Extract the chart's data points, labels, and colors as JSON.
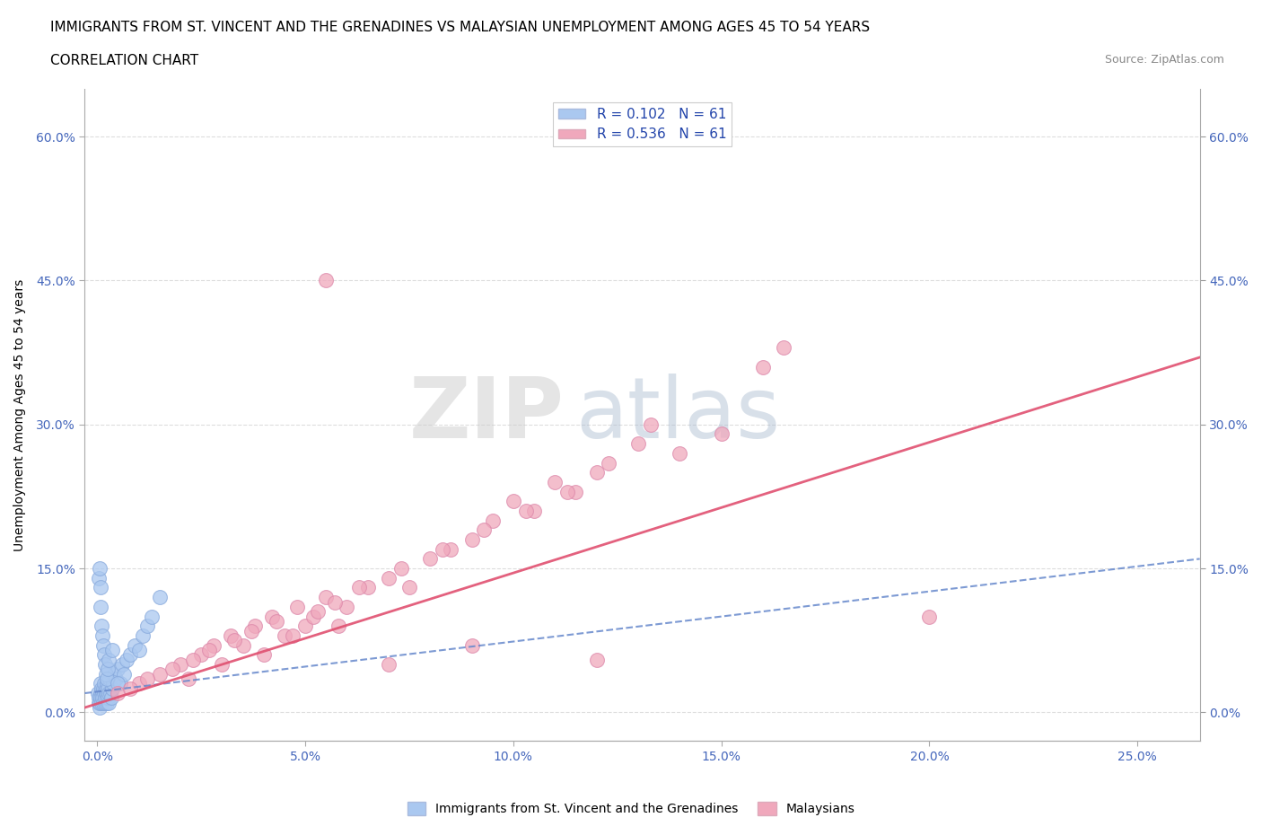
{
  "title_line1": "IMMIGRANTS FROM ST. VINCENT AND THE GRENADINES VS MALAYSIAN UNEMPLOYMENT AMONG AGES 45 TO 54 YEARS",
  "title_line2": "CORRELATION CHART",
  "source_text": "Source: ZipAtlas.com",
  "ylabel": "Unemployment Among Ages 45 to 54 years",
  "x_tick_labels": [
    "0.0%",
    "5.0%",
    "10.0%",
    "15.0%",
    "20.0%",
    "25.0%"
  ],
  "x_tick_values": [
    0.0,
    5.0,
    10.0,
    15.0,
    20.0,
    25.0
  ],
  "y_tick_labels": [
    "0.0%",
    "15.0%",
    "30.0%",
    "45.0%",
    "60.0%"
  ],
  "y_tick_values": [
    0.0,
    15.0,
    30.0,
    45.0,
    60.0
  ],
  "xlim": [
    -0.3,
    26.5
  ],
  "ylim": [
    -3.0,
    65.0
  ],
  "R_blue": 0.102,
  "R_pink": 0.536,
  "N_blue": 61,
  "N_pink": 61,
  "blue_color": "#aac8f0",
  "pink_color": "#f0a8bc",
  "blue_line_color": "#6688cc",
  "pink_line_color": "#e05070",
  "legend_label_blue": "Immigrants from St. Vincent and the Grenadines",
  "legend_label_pink": "Malaysians",
  "watermark_zip": "ZIP",
  "watermark_atlas": "atlas",
  "grid_color": "#dddddd",
  "title_fontsize": 11,
  "axis_label_fontsize": 10,
  "tick_fontsize": 10,
  "blue_scatter_x": [
    0.02,
    0.03,
    0.04,
    0.05,
    0.06,
    0.07,
    0.08,
    0.09,
    0.1,
    0.11,
    0.12,
    0.13,
    0.14,
    0.15,
    0.16,
    0.17,
    0.18,
    0.19,
    0.2,
    0.21,
    0.22,
    0.23,
    0.24,
    0.25,
    0.26,
    0.27,
    0.28,
    0.3,
    0.32,
    0.34,
    0.36,
    0.38,
    0.4,
    0.45,
    0.5,
    0.55,
    0.6,
    0.65,
    0.7,
    0.8,
    0.9,
    1.0,
    1.1,
    1.2,
    1.3,
    1.5,
    0.03,
    0.05,
    0.07,
    0.09,
    0.11,
    0.13,
    0.15,
    0.17,
    0.19,
    0.21,
    0.23,
    0.25,
    0.28,
    0.35,
    0.5
  ],
  "blue_scatter_y": [
    2.0,
    1.5,
    1.0,
    0.5,
    1.0,
    2.0,
    1.5,
    3.0,
    2.5,
    1.0,
    2.0,
    1.5,
    1.0,
    2.5,
    3.0,
    2.0,
    1.0,
    1.5,
    2.0,
    2.5,
    1.0,
    2.0,
    3.0,
    2.5,
    1.5,
    1.0,
    2.0,
    3.5,
    2.0,
    1.5,
    2.5,
    3.0,
    4.0,
    3.5,
    4.5,
    3.0,
    5.0,
    4.0,
    5.5,
    6.0,
    7.0,
    6.5,
    8.0,
    9.0,
    10.0,
    12.0,
    14.0,
    15.0,
    13.0,
    11.0,
    9.0,
    8.0,
    7.0,
    6.0,
    5.0,
    4.0,
    3.5,
    4.5,
    5.5,
    6.5,
    3.0
  ],
  "pink_scatter_x": [
    0.5,
    1.0,
    1.5,
    2.0,
    2.2,
    2.5,
    2.8,
    3.0,
    3.2,
    3.5,
    3.8,
    4.0,
    4.2,
    4.5,
    4.8,
    5.0,
    5.2,
    5.5,
    5.8,
    6.0,
    6.5,
    7.0,
    7.5,
    8.0,
    8.5,
    9.0,
    9.5,
    10.0,
    10.5,
    11.0,
    11.5,
    12.0,
    13.0,
    14.0,
    15.0,
    16.0,
    0.8,
    1.2,
    1.8,
    2.3,
    2.7,
    3.3,
    3.7,
    4.3,
    4.7,
    5.3,
    5.7,
    6.3,
    7.3,
    8.3,
    9.3,
    10.3,
    11.3,
    12.3,
    13.3,
    5.5,
    7.0,
    9.0,
    12.0,
    16.5,
    20.0
  ],
  "pink_scatter_y": [
    2.0,
    3.0,
    4.0,
    5.0,
    3.5,
    6.0,
    7.0,
    5.0,
    8.0,
    7.0,
    9.0,
    6.0,
    10.0,
    8.0,
    11.0,
    9.0,
    10.0,
    12.0,
    9.0,
    11.0,
    13.0,
    14.0,
    13.0,
    16.0,
    17.0,
    18.0,
    20.0,
    22.0,
    21.0,
    24.0,
    23.0,
    25.0,
    28.0,
    27.0,
    29.0,
    36.0,
    2.5,
    3.5,
    4.5,
    5.5,
    6.5,
    7.5,
    8.5,
    9.5,
    8.0,
    10.5,
    11.5,
    13.0,
    15.0,
    17.0,
    19.0,
    21.0,
    23.0,
    26.0,
    30.0,
    45.0,
    5.0,
    7.0,
    5.5,
    38.0,
    10.0
  ],
  "blue_trendline_x": [
    -0.3,
    26.5
  ],
  "blue_trendline_y": [
    2.0,
    16.0
  ],
  "pink_trendline_x": [
    -0.3,
    26.5
  ],
  "pink_trendline_y": [
    0.5,
    37.0
  ]
}
